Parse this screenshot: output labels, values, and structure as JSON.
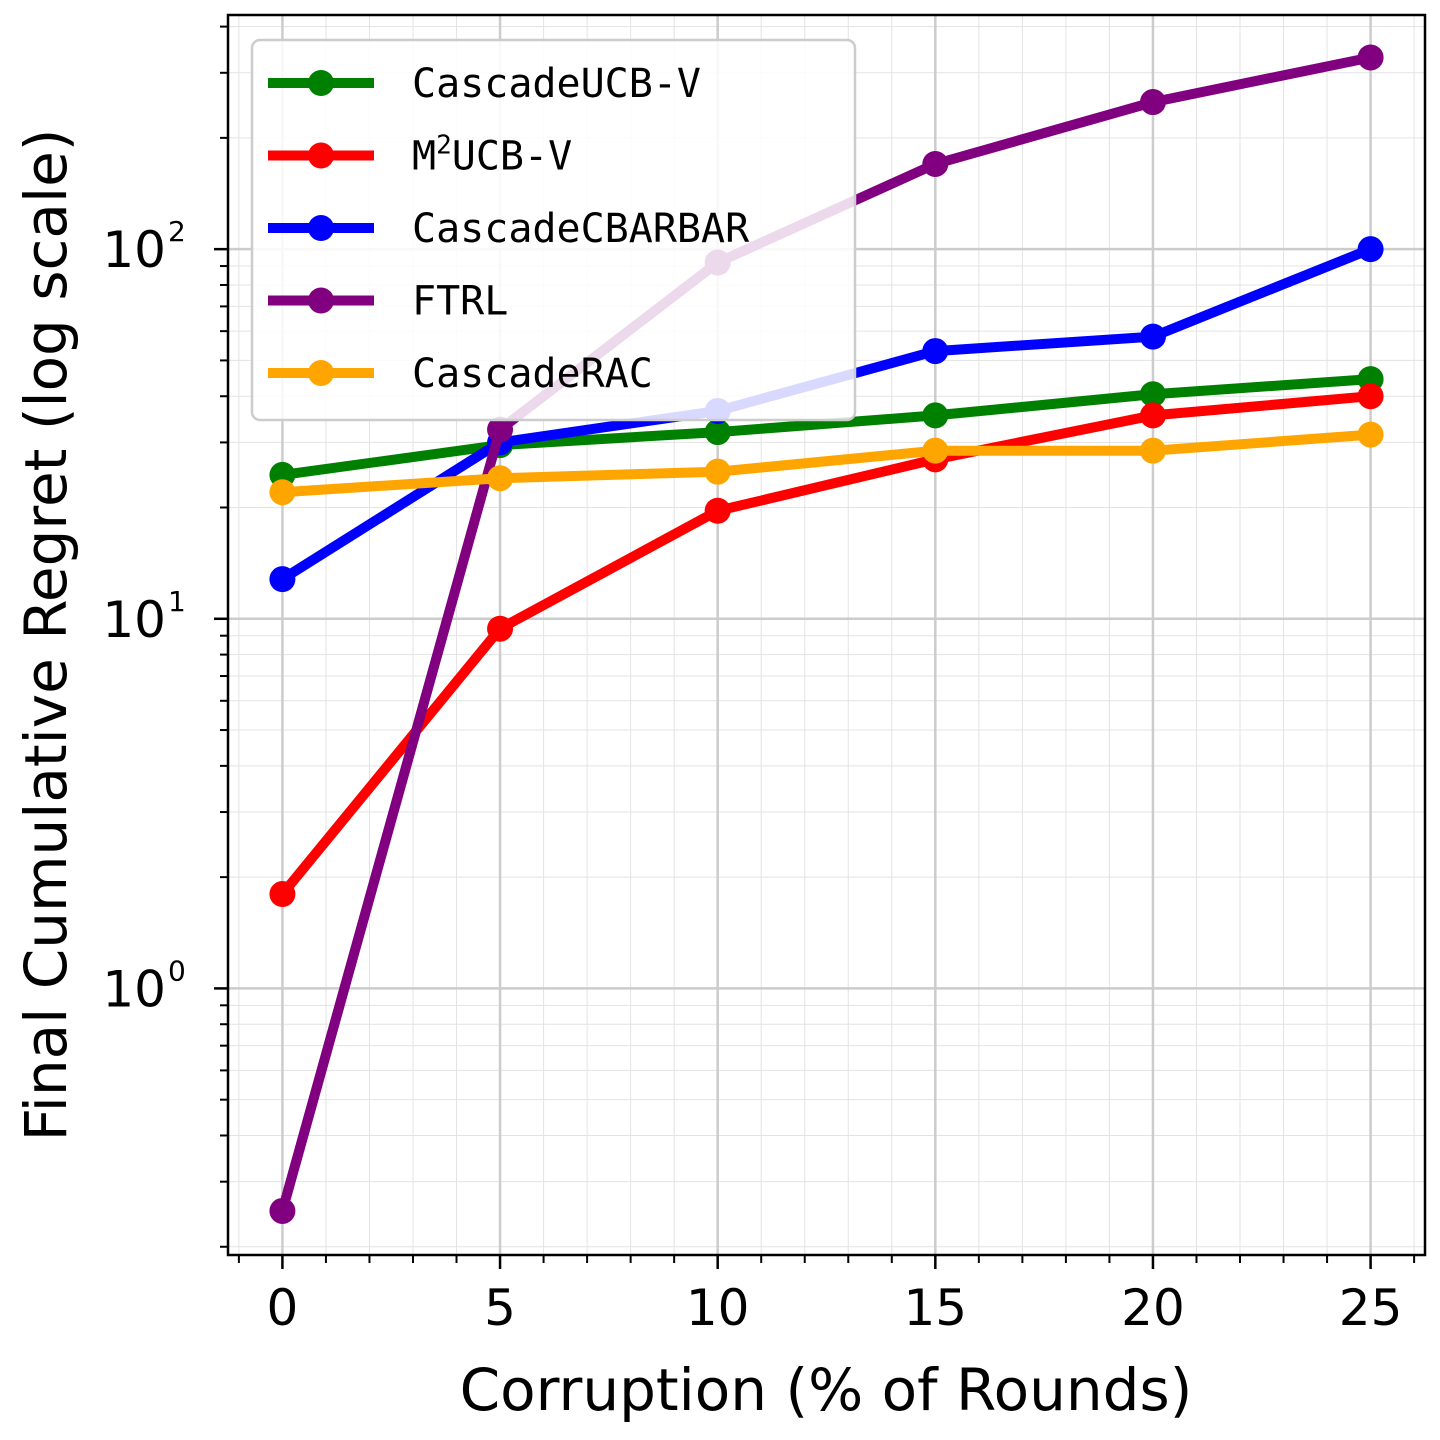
{
  "chart_data": {
    "type": "line",
    "xlabel": "Corruption (% of Rounds)",
    "ylabel": "Final Cumulative Regret (log scale)",
    "x": [
      0,
      5,
      10,
      15,
      20,
      25
    ],
    "xlim": [
      -1.25,
      26.25
    ],
    "ylim": [
      0.19,
      430
    ],
    "yscale": "log",
    "x_ticks": [
      0,
      5,
      10,
      15,
      20,
      25
    ],
    "y_ticks": [
      {
        "value": 1,
        "base": "10",
        "exp": "0"
      },
      {
        "value": 10,
        "base": "10",
        "exp": "1"
      },
      {
        "value": 100,
        "base": "10",
        "exp": "2"
      }
    ],
    "grid": true,
    "legend_position": "top-left",
    "series": [
      {
        "name": "CascadeUCB-V",
        "color": "#008000",
        "values": [
          24.5,
          29.5,
          32,
          35.5,
          40.5,
          44.5
        ]
      },
      {
        "name_base": "M",
        "name_sup": "2",
        "name_rest": "UCB-V",
        "color": "#ff0000",
        "values": [
          1.8,
          9.4,
          19.6,
          27,
          35.5,
          40
        ]
      },
      {
        "name": "CascadeCBARBAR",
        "color": "#0000ff",
        "values": [
          12.8,
          30,
          36.5,
          53,
          58,
          100
        ]
      },
      {
        "name": "FTRL",
        "color": "#800080",
        "values": [
          0.25,
          32.5,
          92,
          170,
          250,
          330
        ]
      },
      {
        "name": "CascadeRAC",
        "color": "#ffa500",
        "values": [
          22,
          24,
          25,
          28.5,
          28.5,
          31.5
        ]
      }
    ]
  }
}
